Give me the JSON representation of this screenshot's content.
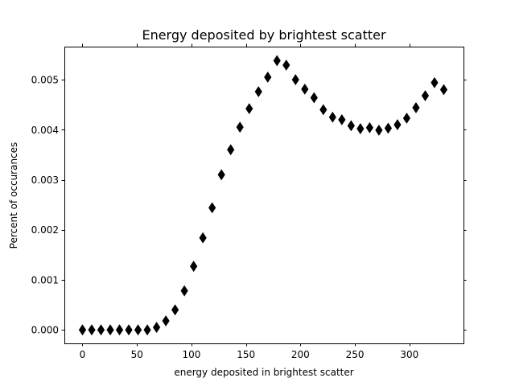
{
  "chart_data": {
    "type": "scatter",
    "title": "Energy deposited by brightest scatter",
    "xlabel": "energy deposited in brightest scatter",
    "ylabel": "Percent of occurances",
    "xlim": [
      -16.6,
      349.6
    ],
    "ylim": [
      -0.00027,
      0.00566
    ],
    "xticks": [
      0,
      50,
      100,
      150,
      200,
      250,
      300
    ],
    "yticks": [
      "0.000",
      "0.001",
      "0.002",
      "0.003",
      "0.004",
      "0.005"
    ],
    "ytick_values": [
      0.0,
      0.001,
      0.002,
      0.003,
      0.004,
      0.005
    ],
    "grid": false,
    "marker": "thin-diamond",
    "color": "#000000",
    "series": [
      {
        "x": [
          0,
          8.5,
          17,
          25.5,
          34,
          42.5,
          51,
          59.5,
          68,
          76.5,
          85,
          93.5,
          102,
          110.5,
          119,
          127.5,
          136,
          144.5,
          153,
          161.5,
          170,
          178.5,
          187,
          195.5,
          204,
          212.5,
          221,
          229.5,
          238,
          246.5,
          255,
          263.5,
          272,
          280.5,
          289,
          297.5,
          306,
          314.5,
          323,
          331.5
        ],
        "y": [
          0.0,
          0.0,
          0.0,
          0.0,
          0.0,
          0.0,
          0.0,
          0.0,
          5e-05,
          0.00018,
          0.0004,
          0.00078,
          0.00127,
          0.00184,
          0.00244,
          0.0031,
          0.0036,
          0.00405,
          0.00442,
          0.00476,
          0.00505,
          0.00538,
          0.00529,
          0.005,
          0.00481,
          0.00464,
          0.0044,
          0.00425,
          0.0042,
          0.00408,
          0.00402,
          0.00404,
          0.00399,
          0.00403,
          0.0041,
          0.00423,
          0.00444,
          0.00468,
          0.00494,
          0.0048
        ]
      }
    ]
  }
}
